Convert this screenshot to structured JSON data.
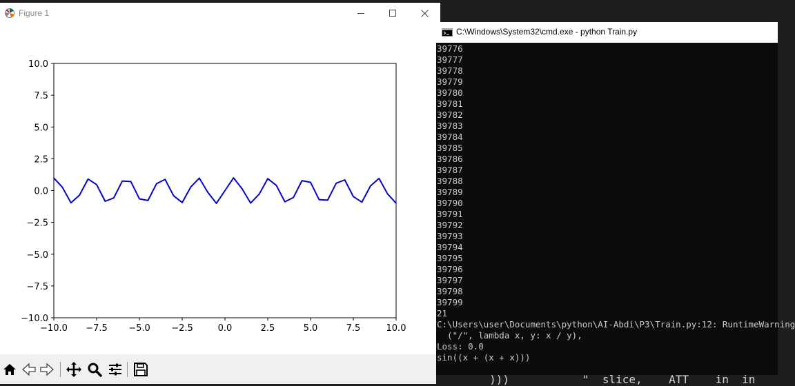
{
  "figure_window": {
    "title": "Figure 1",
    "controls": {
      "minimize": "minimize",
      "maximize": "maximize",
      "close": "close"
    },
    "toolbar": [
      "home-icon",
      "back-icon",
      "forward-icon",
      "pan-icon",
      "zoom-icon",
      "configure-subplots-icon",
      "save-icon"
    ]
  },
  "chart_data": {
    "type": "line",
    "title": "",
    "xlabel": "",
    "ylabel": "",
    "xlim": [
      -10,
      10
    ],
    "ylim": [
      -10,
      10
    ],
    "xticks": [
      "−10.0",
      "−7.5",
      "−5.0",
      "−2.5",
      "0.0",
      "2.5",
      "5.0",
      "7.5",
      "10.0"
    ],
    "yticks": [
      "10.0",
      "7.5",
      "5.0",
      "2.5",
      "0.0",
      "−2.5",
      "−5.0",
      "−7.5",
      "−10.0"
    ],
    "grid": false,
    "line_color": "#0000cc",
    "series": [
      {
        "function": "sin(3x)",
        "x": [
          -10.0,
          -9.5,
          -9.0,
          -8.5,
          -8.0,
          -7.5,
          -7.0,
          -6.5,
          -6.0,
          -5.5,
          -5.0,
          -4.5,
          -4.0,
          -3.5,
          -3.0,
          -2.5,
          -2.0,
          -1.5,
          -1.0,
          -0.5,
          0.0,
          0.5,
          1.0,
          1.5,
          2.0,
          2.5,
          3.0,
          3.5,
          4.0,
          4.5,
          5.0,
          5.5,
          6.0,
          6.5,
          7.0,
          7.5,
          8.0,
          8.5,
          9.0,
          9.5,
          10.0
        ],
        "y": [
          0.99,
          0.26,
          -0.96,
          -0.36,
          0.91,
          0.47,
          -0.84,
          -0.58,
          0.75,
          0.71,
          -0.65,
          -0.78,
          0.54,
          0.88,
          -0.41,
          -0.94,
          0.28,
          0.98,
          -0.14,
          -1.0,
          0.0,
          1.0,
          0.14,
          -0.98,
          -0.28,
          0.94,
          0.41,
          -0.88,
          -0.54,
          0.78,
          0.65,
          -0.71,
          -0.75,
          0.58,
          0.84,
          -0.47,
          -0.91,
          0.36,
          0.96,
          -0.26,
          -0.99
        ]
      }
    ]
  },
  "cmd_window": {
    "title": "C:\\Windows\\System32\\cmd.exe - python  Train.py",
    "output_lines": [
      "39776",
      "39777",
      "39778",
      "39779",
      "39780",
      "39781",
      "39782",
      "39783",
      "39784",
      "39785",
      "39786",
      "39787",
      "39788",
      "39789",
      "39790",
      "39791",
      "39792",
      "39793",
      "39794",
      "39795",
      "39796",
      "39797",
      "39798",
      "39799",
      "21",
      "C:\\Users\\user\\Documents\\python\\AI-Abdi\\P3\\Train.py:12: RuntimeWarning",
      "  (\"/\", lambda x, y: x / y),",
      "Loss: 0.0",
      "sin((x + (x + x)))"
    ]
  },
  "background_strip_text": "        )))           \"  slice,    ATT    in  in  "
}
